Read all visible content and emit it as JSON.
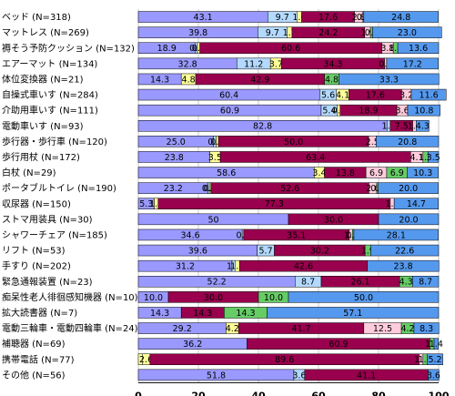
{
  "chart_data": {
    "type": "bar",
    "orientation": "horizontal",
    "stacked": true,
    "xlim": [
      0,
      100
    ],
    "x_ticks": [
      0,
      20,
      40,
      60,
      80,
      100
    ],
    "grid": true,
    "legend": "none",
    "series_colors": [
      "#9999ff",
      "#b3d9ff",
      "#ffff99",
      "#99004d",
      "#ffccdd",
      "#66cc66",
      "#5599ee"
    ],
    "categories": [
      "ベッド (N=318)",
      "マットレス (N=269)",
      "褥そう予防クッション (N=132)",
      "エアーマット (N=134)",
      "体位変換器 (N=21)",
      "自操式車いす (N=284)",
      "介助用車いす (N=111)",
      "電動車いす (N=93)",
      "歩行器・歩行車 (N=120)",
      "歩行用杖 (N=172)",
      "白杖 (N=29)",
      "ポータブルトイレ (N=190)",
      "収尿器 (N=150)",
      "ストマ用装具 (N=30)",
      "シャワーチェア (N=185)",
      "リフト (N=53)",
      "手すり (N=202)",
      "緊急通報装置 (N=23)",
      "痴呆性老人徘徊感知機器 (N=10)",
      "拡大読書器 (N=7)",
      "電動三輪車・電動四輪車 (N=24)",
      "補聴器 (N=69)",
      "携帯電話 (N=77)",
      "その他 (N=56)"
    ],
    "rows": [
      [
        {
          "v": 43.1,
          "c": 0,
          "l": "43.1"
        },
        {
          "v": 9.7,
          "c": 1,
          "l": "9.7"
        },
        {
          "v": 1.6,
          "c": 2,
          "l": "1.6"
        },
        {
          "v": 17.6,
          "c": 3,
          "l": "17.6"
        },
        {
          "v": 2.8,
          "c": 4,
          "l": "2.8"
        },
        {
          "v": 0.3,
          "c": 5,
          "l": "0.3"
        },
        {
          "v": 24.8,
          "c": 6,
          "l": "24.8"
        }
      ],
      [
        {
          "v": 39.8,
          "c": 0,
          "l": "39.8"
        },
        {
          "v": 9.7,
          "c": 1,
          "l": "9.7"
        },
        {
          "v": 1.7,
          "c": 2,
          "l": "1.7"
        },
        {
          "v": 24.2,
          "c": 3,
          "l": "24.2"
        },
        {
          "v": 1.9,
          "c": 4,
          "l": "1.9"
        },
        {
          "v": 0.7,
          "c": 5,
          "l": "0.7"
        },
        {
          "v": 23.0,
          "c": 6,
          "l": "23.0"
        }
      ],
      [
        {
          "v": 18.9,
          "c": 0,
          "l": "18.9"
        },
        {
          "v": 0.8,
          "c": 1,
          "l": "0.8"
        },
        {
          "v": 0.8,
          "c": 2,
          "l": "0.8"
        },
        {
          "v": 60.6,
          "c": 3,
          "l": "60.6"
        },
        {
          "v": 3.8,
          "c": 4,
          "l": "3.8"
        },
        {
          "v": 1.5,
          "c": 5,
          "l": "1.5"
        },
        {
          "v": 13.6,
          "c": 6,
          "l": "13.6"
        }
      ],
      [
        {
          "v": 32.8,
          "c": 0,
          "l": "32.8"
        },
        {
          "v": 11.2,
          "c": 1,
          "l": "11.2"
        },
        {
          "v": 3.7,
          "c": 2,
          "l": "3.7"
        },
        {
          "v": 34.3,
          "c": 3,
          "l": "34.3"
        },
        {
          "v": 0.7,
          "c": 4,
          "l": "0.7"
        },
        {
          "v": 17.2,
          "c": 6,
          "l": "17.2"
        }
      ],
      [
        {
          "v": 14.3,
          "c": 0,
          "l": "14.3"
        },
        {
          "v": 4.8,
          "c": 2,
          "l": "4.8"
        },
        {
          "v": 42.9,
          "c": 3,
          "l": "42.9"
        },
        {
          "v": 4.8,
          "c": 5,
          "l": "4.8"
        },
        {
          "v": 33.3,
          "c": 6,
          "l": "33.3"
        }
      ],
      [
        {
          "v": 60.4,
          "c": 0,
          "l": "60.4"
        },
        {
          "v": 5.6,
          "c": 1,
          "l": "5.6"
        },
        {
          "v": 4.1,
          "c": 2,
          "l": "4.1"
        },
        {
          "v": 17.6,
          "c": 3,
          "l": "17.6"
        },
        {
          "v": 3.2,
          "c": 4,
          "l": "3.2"
        },
        {
          "v": 11.6,
          "c": 6,
          "l": "11.6"
        }
      ],
      [
        {
          "v": 60.9,
          "c": 0,
          "l": "60.9"
        },
        {
          "v": 5.4,
          "c": 1,
          "l": "5.4"
        },
        {
          "v": 0.9,
          "c": 2,
          "l": "0.9"
        },
        {
          "v": 18.9,
          "c": 3,
          "l": "18.9"
        },
        {
          "v": 3.6,
          "c": 4,
          "l": "3.6"
        },
        {
          "v": 10.8,
          "c": 6,
          "l": "10.8"
        }
      ],
      [
        {
          "v": 82.8,
          "c": 0,
          "l": "82.8"
        },
        {
          "v": 1.1,
          "c": 1,
          "l": "1.1"
        },
        {
          "v": 7.5,
          "c": 3,
          "l": "7.5"
        },
        {
          "v": 1.1,
          "c": 4,
          "l": "1.1"
        },
        {
          "v": 4.3,
          "c": 6,
          "l": "4.3"
        }
      ],
      [
        {
          "v": 25.0,
          "c": 0,
          "l": "25.0"
        },
        {
          "v": 0.9,
          "c": 1,
          "l": "0.9"
        },
        {
          "v": 0.8,
          "c": 2,
          "l": "0.8"
        },
        {
          "v": 50.0,
          "c": 3,
          "l": "50.0"
        },
        {
          "v": 2.5,
          "c": 4,
          "l": "2.5"
        },
        {
          "v": 20.8,
          "c": 6,
          "l": "20.8"
        }
      ],
      [
        {
          "v": 23.8,
          "c": 0,
          "l": "23.8"
        },
        {
          "v": 3.5,
          "c": 2,
          "l": "3.5"
        },
        {
          "v": 63.4,
          "c": 3,
          "l": "63.4"
        },
        {
          "v": 4.1,
          "c": 4,
          "l": "4.1"
        },
        {
          "v": 1.7,
          "c": 5,
          "l": "1.7"
        },
        {
          "v": 3.5,
          "c": 6,
          "l": "3.5"
        }
      ],
      [
        {
          "v": 58.6,
          "c": 0,
          "l": "58.6"
        },
        {
          "v": 3.4,
          "c": 2,
          "l": "3.4"
        },
        {
          "v": 13.8,
          "c": 3,
          "l": "13.8"
        },
        {
          "v": 6.9,
          "c": 4,
          "l": "6.9"
        },
        {
          "v": 6.9,
          "c": 5,
          "l": "6.9"
        },
        {
          "v": 10.3,
          "c": 6,
          "l": "10.3"
        }
      ],
      [
        {
          "v": 23.2,
          "c": 0,
          "l": "23.2"
        },
        {
          "v": 0.5,
          "c": 1,
          "l": "0.5"
        },
        {
          "v": 0.5,
          "c": 2,
          "l": "0.5"
        },
        {
          "v": 52.6,
          "c": 3,
          "l": "52.6"
        },
        {
          "v": 2.6,
          "c": 4,
          "l": "2.6"
        },
        {
          "v": 0.5,
          "c": 5,
          "l": "0.5"
        },
        {
          "v": 20.0,
          "c": 6,
          "l": "20.0"
        }
      ],
      [
        {
          "v": 5.3,
          "c": 0,
          "l": "5.3"
        },
        {
          "v": 1.3,
          "c": 2,
          "l": "1.3"
        },
        {
          "v": 77.3,
          "c": 3,
          "l": "77.3"
        },
        {
          "v": 1.3,
          "c": 4,
          "l": "1.3"
        },
        {
          "v": 14.7,
          "c": 6,
          "l": "14.7"
        }
      ],
      [
        {
          "v": 50,
          "c": 0,
          "l": "50"
        },
        {
          "v": 30.0,
          "c": 3,
          "l": "30.0"
        },
        {
          "v": 20.0,
          "c": 6,
          "l": "20.0"
        }
      ],
      [
        {
          "v": 34.6,
          "c": 0,
          "l": "34.6"
        },
        {
          "v": 0.5,
          "c": 1,
          "l": "0.5"
        },
        {
          "v": 35.1,
          "c": 3,
          "l": "35.1"
        },
        {
          "v": 1.1,
          "c": 4,
          "l": "1.1"
        },
        {
          "v": 0.5,
          "c": 5,
          "l": "0.5"
        },
        {
          "v": 28.1,
          "c": 6,
          "l": "28.1"
        }
      ],
      [
        {
          "v": 39.6,
          "c": 0,
          "l": "39.6"
        },
        {
          "v": 5.7,
          "c": 1,
          "l": "5.7"
        },
        {
          "v": 30.2,
          "c": 3,
          "l": "30.2"
        },
        {
          "v": 1.9,
          "c": 5,
          "l": "1.9"
        },
        {
          "v": 22.6,
          "c": 6,
          "l": "22.6"
        }
      ],
      [
        {
          "v": 31.2,
          "c": 0,
          "l": "31.2"
        },
        {
          "v": 1.0,
          "c": 1,
          "l": "1.0"
        },
        {
          "v": 1.5,
          "c": 2,
          "l": "1.5"
        },
        {
          "v": 42.6,
          "c": 3,
          "l": "42.6"
        },
        {
          "v": 23.8,
          "c": 6,
          "l": "23.8"
        }
      ],
      [
        {
          "v": 52.2,
          "c": 0,
          "l": "52.2"
        },
        {
          "v": 8.7,
          "c": 1,
          "l": "8.7"
        },
        {
          "v": 26.1,
          "c": 3,
          "l": "26.1"
        },
        {
          "v": 4.3,
          "c": 5,
          "l": "4.3"
        },
        {
          "v": 8.7,
          "c": 6,
          "l": "8.7"
        }
      ],
      [
        {
          "v": 10.0,
          "c": 0,
          "l": "10.0"
        },
        {
          "v": 30.0,
          "c": 3,
          "l": "30.0"
        },
        {
          "v": 10.0,
          "c": 5,
          "l": "10.0"
        },
        {
          "v": 50.0,
          "c": 6,
          "l": "50.0"
        }
      ],
      [
        {
          "v": 14.3,
          "c": 0,
          "l": "14.3"
        },
        {
          "v": 14.3,
          "c": 3,
          "l": "14.3"
        },
        {
          "v": 14.3,
          "c": 5,
          "l": "14.3"
        },
        {
          "v": 57.1,
          "c": 6,
          "l": "57.1"
        }
      ],
      [
        {
          "v": 29.2,
          "c": 0,
          "l": "29.2"
        },
        {
          "v": 4.2,
          "c": 2,
          "l": "4.2"
        },
        {
          "v": 41.7,
          "c": 3,
          "l": "41.7"
        },
        {
          "v": 12.5,
          "c": 4,
          "l": "12.5"
        },
        {
          "v": 4.2,
          "c": 5,
          "l": "4.2"
        },
        {
          "v": 8.3,
          "c": 6,
          "l": "8.3"
        }
      ],
      [
        {
          "v": 36.2,
          "c": 0,
          "l": "36.2"
        },
        {
          "v": 60.9,
          "c": 3,
          "l": "60.9"
        },
        {
          "v": 1.4,
          "c": 5,
          "l": "1.4"
        },
        {
          "v": 1.4,
          "c": 6,
          "l": "1.4"
        }
      ],
      [
        {
          "v": 1.3,
          "c": 2,
          "l": ""
        },
        {
          "v": 2.6,
          "c": 2,
          "l": "2.6"
        },
        {
          "v": 89.6,
          "c": 3,
          "l": "89.6"
        },
        {
          "v": 1.3,
          "c": 4,
          "l": "1.3"
        },
        {
          "v": 1.4,
          "c": 5,
          "l": "1.4"
        },
        {
          "v": 5.2,
          "c": 6,
          "l": "5.2"
        }
      ],
      [
        {
          "v": 51.8,
          "c": 0,
          "l": "51.8"
        },
        {
          "v": 3.6,
          "c": 1,
          "l": "3.6"
        },
        {
          "v": 41.1,
          "c": 3,
          "l": "41.1"
        },
        {
          "v": 3.6,
          "c": 6,
          "l": "3.6"
        }
      ]
    ]
  }
}
